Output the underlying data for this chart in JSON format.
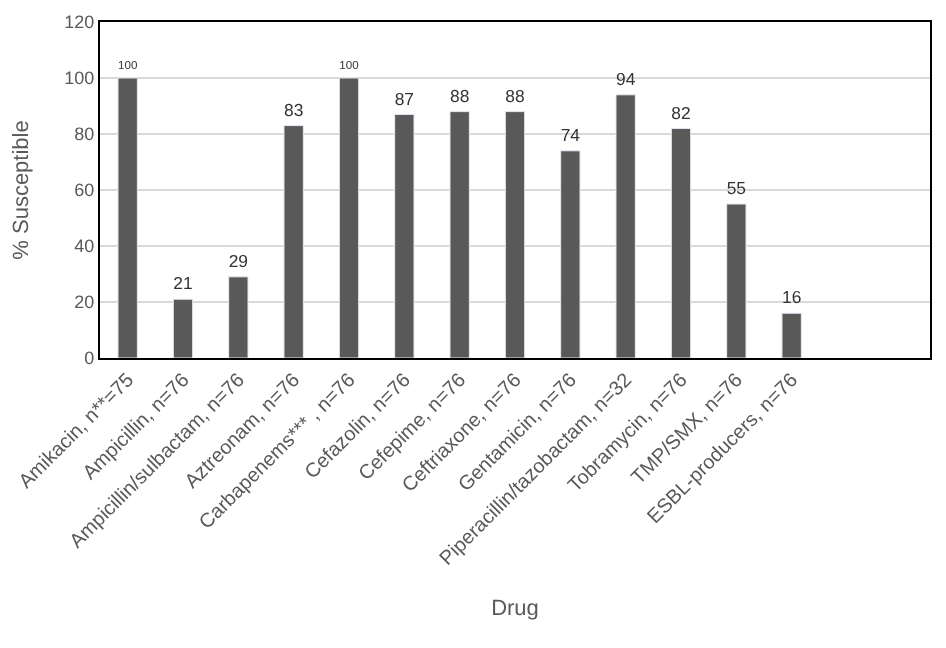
{
  "chart_data": {
    "type": "bar",
    "xlabel": "Drug",
    "ylabel": "% Susceptible",
    "categories": [
      "Amikacin, n**=75",
      "Ampicillin, n=76",
      "Ampicillin/sulbactam, n=76",
      "Aztreonam, n=76",
      "Carbapenems*** , n=76",
      "Cefazolin, n=76",
      "Cefepime, n=76",
      "Ceftriaxone, n=76",
      "Gentamicin, n=76",
      "Piperacillin/tazobactam, n=32",
      "Tobramycin, n=76",
      "TMP/SMX, n=76",
      "ESBL-producers, n=76",
      null,
      null
    ],
    "values": [
      100,
      21,
      29,
      83,
      100,
      87,
      88,
      88,
      74,
      94,
      82,
      55,
      16,
      null,
      null
    ],
    "color": "#595959",
    "data_labels": true,
    "ylim": [
      0,
      120
    ],
    "yticks": [
      0,
      20,
      40,
      60,
      80,
      100,
      120
    ],
    "grid": "y",
    "legend": false
  }
}
